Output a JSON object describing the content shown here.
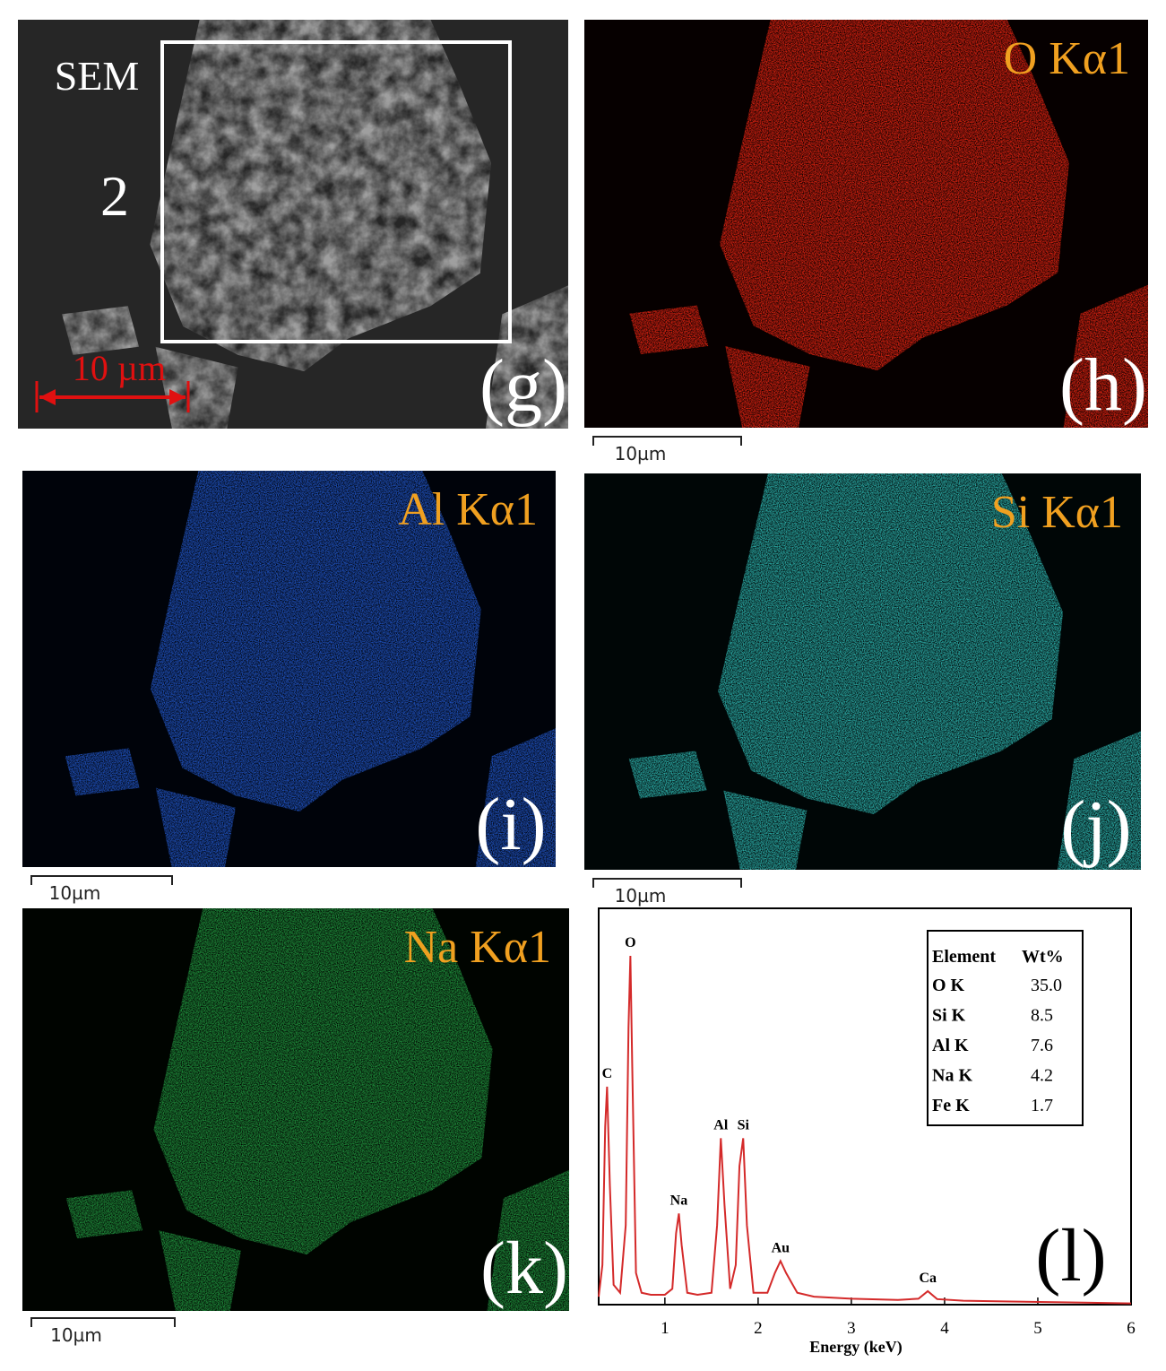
{
  "panels": [
    {
      "tag": "(g)",
      "title": "SEM",
      "region": "2",
      "scale_bar": "10 µm"
    },
    {
      "tag": "(h)",
      "title": "O Kα1",
      "scale_bar": "10µm"
    },
    {
      "tag": "(i)",
      "title": "Al Kα1",
      "scale_bar": "10µm"
    },
    {
      "tag": "(j)",
      "title": "Si Kα1",
      "scale_bar": "10µm"
    },
    {
      "tag": "(k)",
      "title": "Na Kα1",
      "scale_bar": "10µm"
    }
  ],
  "chart_data": {
    "type": "line",
    "panel_label": "(l)",
    "x_label": "Energy (keV)",
    "x": [
      0.29,
      0.33,
      0.36,
      0.38,
      0.41,
      0.45,
      0.52,
      0.58,
      0.61,
      0.63,
      0.65,
      0.69,
      0.75,
      0.85,
      1.0,
      1.08,
      1.12,
      1.15,
      1.18,
      1.24,
      1.35,
      1.5,
      1.56,
      1.6,
      1.64,
      1.7,
      1.76,
      1.8,
      1.84,
      1.88,
      1.95,
      2.1,
      2.18,
      2.24,
      2.3,
      2.42,
      2.6,
      3.0,
      3.5,
      3.72,
      3.82,
      3.92,
      4.2,
      4.7,
      5.5,
      6.0
    ],
    "series": [
      {
        "color": "#d42a2a",
        "values": [
          2,
          10,
          45,
          55,
          30,
          5,
          3,
          20,
          70,
          88,
          60,
          8,
          3,
          2.5,
          2.5,
          4,
          18,
          23,
          15,
          3,
          2.5,
          3,
          20,
          42,
          25,
          4,
          10,
          35,
          42,
          20,
          3,
          3,
          8,
          11,
          8,
          3,
          2,
          1.5,
          1.2,
          1.5,
          3.4,
          1.4,
          1,
          0.8,
          0.5,
          0.3
        ]
      }
    ],
    "xlim": [
      0.29,
      6
    ],
    "xticks": [
      1,
      2,
      3,
      4,
      5,
      6
    ],
    "ylim": [
      0,
      100
    ],
    "peak_labels": [
      {
        "label": "C",
        "x": 0.38
      },
      {
        "label": "O",
        "x": 0.63
      },
      {
        "label": "Na",
        "x": 1.15
      },
      {
        "label": "Al",
        "x": 1.6
      },
      {
        "label": "Si",
        "x": 1.84
      },
      {
        "label": "Au",
        "x": 2.24
      },
      {
        "label": "Ca",
        "x": 3.82
      }
    ],
    "table": {
      "header": [
        "Element",
        "Wt%"
      ],
      "rows": [
        [
          "O K",
          "35.0"
        ],
        [
          "Si K",
          "8.5"
        ],
        [
          "Al K",
          "7.6"
        ],
        [
          "Na K",
          "4.2"
        ],
        [
          "Fe K",
          "1.7"
        ]
      ]
    }
  }
}
